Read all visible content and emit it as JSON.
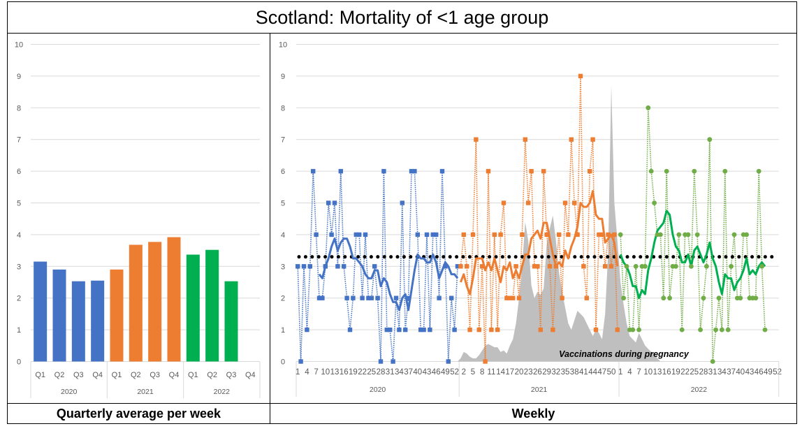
{
  "title": "Scotland: Mortality of <1 age group",
  "labels": {
    "left": "Quarterly average per week",
    "right": "Weekly"
  },
  "colors": {
    "2020": "#4472C4",
    "2021": "#ED7D31",
    "2022_bar": "#00B050",
    "2022_points": "#70AD47",
    "2022_line": "#00B050",
    "vaccination": "#BFBFBF",
    "average": "#000000",
    "grid": "#D9D9D9"
  },
  "chart_data": [
    {
      "type": "bar",
      "title": "Quarterly average per week",
      "ylim": [
        0,
        10
      ],
      "yticks": [
        0,
        1,
        2,
        3,
        4,
        5,
        6,
        7,
        8,
        9,
        10
      ],
      "groups": [
        {
          "year": "2020",
          "categories": [
            "Q1",
            "Q2",
            "Q3",
            "Q4"
          ],
          "values": [
            3.15,
            2.9,
            2.53,
            2.55
          ]
        },
        {
          "year": "2021",
          "categories": [
            "Q1",
            "Q2",
            "Q3",
            "Q4"
          ],
          "values": [
            2.9,
            3.68,
            3.77,
            3.92
          ]
        },
        {
          "year": "2022",
          "categories": [
            "Q1",
            "Q2",
            "Q3",
            "Q4"
          ],
          "values": [
            3.37,
            3.52,
            2.53,
            null
          ]
        }
      ]
    },
    {
      "type": "line",
      "title": "Weekly",
      "ylim": [
        0,
        10
      ],
      "yticks": [
        0,
        1,
        2,
        3,
        4,
        5,
        6,
        7,
        8,
        9,
        10
      ],
      "moving_average_weeks": 8,
      "overall_average": 3.3,
      "annotation": "Vaccinations during pregnancy",
      "series": [
        {
          "year": "2020",
          "weeks": 53,
          "values": [
            3,
            0,
            3,
            1,
            3,
            6,
            4,
            2,
            2,
            3,
            5,
            4,
            5,
            3,
            6,
            3,
            2,
            1,
            2,
            4,
            4,
            2,
            4,
            2,
            2,
            3,
            2,
            0,
            6,
            1,
            1,
            0,
            2,
            1,
            5,
            1,
            2,
            6,
            6,
            4,
            1,
            1,
            4,
            1,
            4,
            4,
            2,
            6,
            3,
            0,
            2,
            1,
            3
          ]
        },
        {
          "year": "2021",
          "weeks": 52,
          "values": [
            3,
            4,
            3,
            1,
            4,
            7,
            1,
            3,
            0,
            6,
            1,
            4,
            1,
            4,
            5,
            2,
            2,
            2,
            3,
            2,
            4,
            7,
            5,
            6,
            3,
            3,
            1,
            6,
            4,
            3,
            1,
            3,
            4,
            2,
            5,
            4,
            7,
            5,
            4,
            9,
            3,
            2,
            6,
            7,
            1,
            4,
            4,
            3,
            4,
            3,
            4,
            1
          ]
        },
        {
          "year": "2022",
          "weeks": 52,
          "values": [
            4,
            2,
            3,
            1,
            1,
            3,
            1,
            3,
            3,
            8,
            6,
            5,
            4,
            4,
            2,
            6,
            2,
            3,
            3,
            4,
            1,
            4,
            4,
            3,
            6,
            4,
            1,
            2,
            3,
            7,
            0,
            1,
            2,
            1,
            6,
            1,
            3,
            4,
            2,
            2,
            4,
            4,
            2,
            2,
            2,
            6,
            3,
            1
          ]
        }
      ],
      "vaccinations": {
        "start": "2021 week 1",
        "values": [
          0.1,
          0.3,
          0.25,
          0.15,
          0.1,
          0.1,
          0.2,
          0.35,
          0.5,
          0.55,
          0.5,
          0.45,
          0.45,
          0.3,
          0.35,
          0.25,
          0.5,
          0.7,
          1.2,
          2.0,
          3.0,
          4.4,
          3.8,
          2.4,
          2.0,
          2.2,
          2.1,
          2.3,
          3.7,
          4.2,
          4.6,
          3.8,
          2.8,
          2.2,
          1.7,
          1.2,
          1.0,
          1.3,
          1.6,
          1.5,
          1.4,
          1.2,
          1.0,
          0.8,
          1.0,
          0.9,
          0.7,
          1.5,
          3.5,
          8.7,
          5.0,
          3.8,
          2.5,
          1.8,
          1.2,
          0.8,
          0.7,
          0.6,
          0.9,
          0.7,
          0.5,
          0.4,
          0.3,
          0.25,
          0.1,
          0
        ]
      }
    }
  ]
}
